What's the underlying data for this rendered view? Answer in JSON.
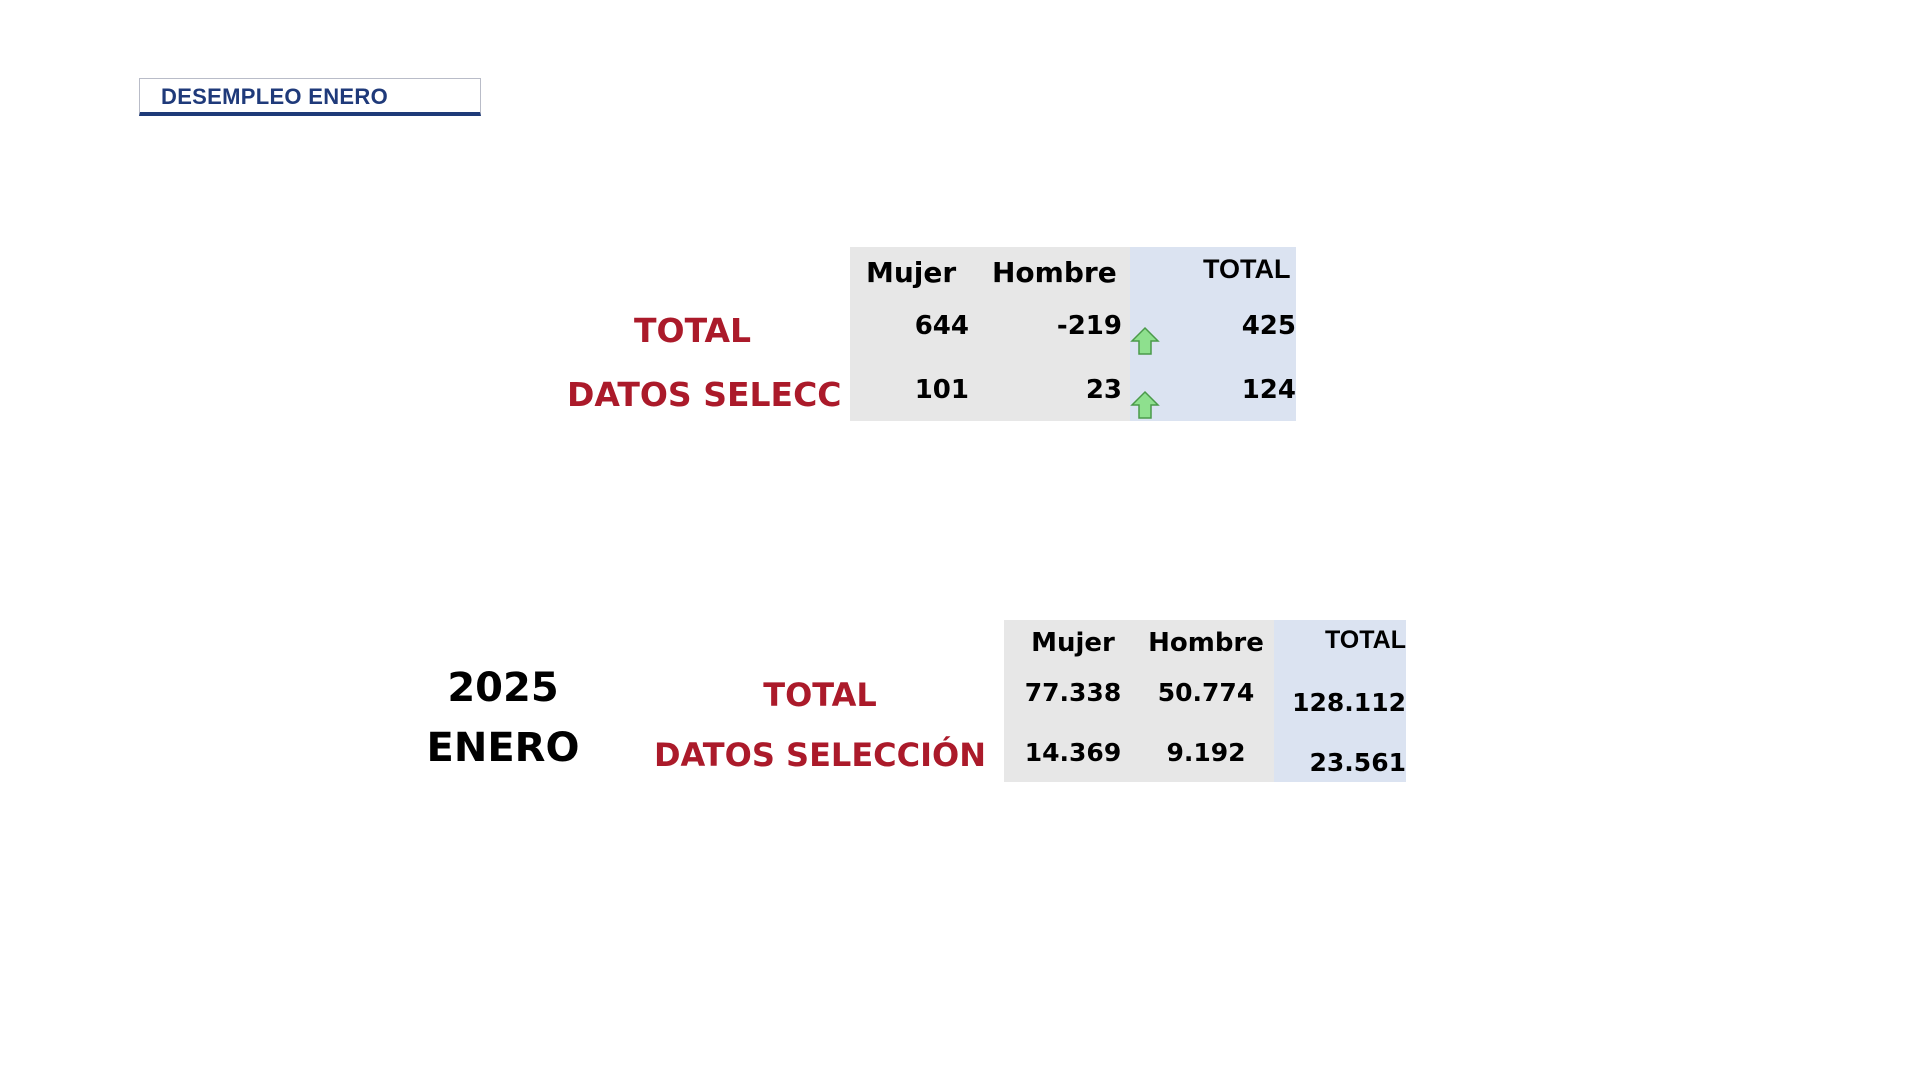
{
  "header": {
    "title": "DESEMPLEO ENERO"
  },
  "variation_table": {
    "columns": [
      "Mujer",
      "Hombre",
      "TOTAL"
    ],
    "rows": [
      {
        "label": "TOTAL",
        "mujer": "644",
        "hombre": "-219",
        "total": "425",
        "trend_icon": "up-arrow-icon"
      },
      {
        "label": "DATOS SELECC",
        "mujer": "101",
        "hombre": "23",
        "total": "124",
        "trend_icon": "up-arrow-icon"
      }
    ]
  },
  "period": {
    "year": "2025",
    "month": "ENERO"
  },
  "monthly_table": {
    "columns": [
      "Mujer",
      "Hombre",
      "TOTAL"
    ],
    "rows": [
      {
        "label": "TOTAL",
        "mujer": "77.338",
        "hombre": "50.774",
        "total": "128.112"
      },
      {
        "label": "DATOS SELECCIÓN",
        "mujer": "14.369",
        "hombre": "9.192",
        "total": "23.561"
      }
    ]
  },
  "colors": {
    "row_label_red": "#ab1a2a",
    "title_blue": "#1f3a7a",
    "cell_gray": "#e7e7e7",
    "cell_blue": "#dbe3f1",
    "arrow_green": "#8ee08e"
  }
}
